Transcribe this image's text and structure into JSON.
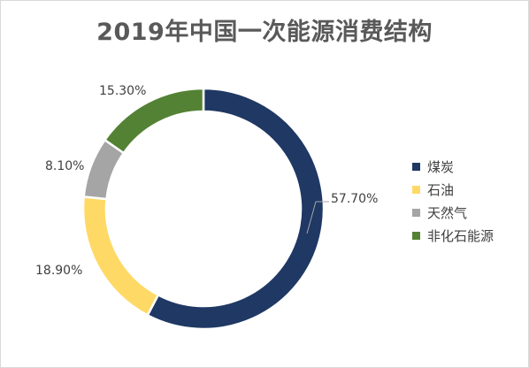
{
  "chart_data": {
    "type": "pie",
    "variant": "donut",
    "title": "2019年中国一次能源消费结构",
    "categories": [
      "煤炭",
      "石油",
      "天然气",
      "非化石能源"
    ],
    "values": [
      57.7,
      18.9,
      8.1,
      15.3
    ],
    "data_labels": [
      "57.70%",
      "18.90%",
      "8.10%",
      "15.30%"
    ],
    "colors": [
      "#1f3864",
      "#ffd966",
      "#a5a5a5",
      "#548235"
    ],
    "legend_position": "right"
  }
}
